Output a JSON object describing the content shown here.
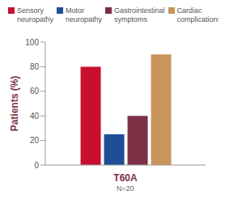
{
  "chart_data": {
    "type": "bar",
    "categories": [
      "T60A"
    ],
    "xlabel": "N=20",
    "ylabel": "Patients (%)",
    "series": [
      {
        "name": "Sensory neuropathy",
        "color": "#c8102e",
        "values": [
          80
        ]
      },
      {
        "name": "Motor neuropathy",
        "color": "#1f4e96",
        "values": [
          25
        ]
      },
      {
        "name": "Gastrointestinal symptoms",
        "color": "#7b3045",
        "values": [
          40
        ]
      },
      {
        "name": "Cardiac complications",
        "color": "#c9955a",
        "values": [
          90
        ]
      }
    ],
    "ylim": [
      0,
      100
    ],
    "yticks": [
      0,
      20,
      40,
      60,
      80,
      100
    ],
    "grid": false,
    "legend": "top"
  }
}
